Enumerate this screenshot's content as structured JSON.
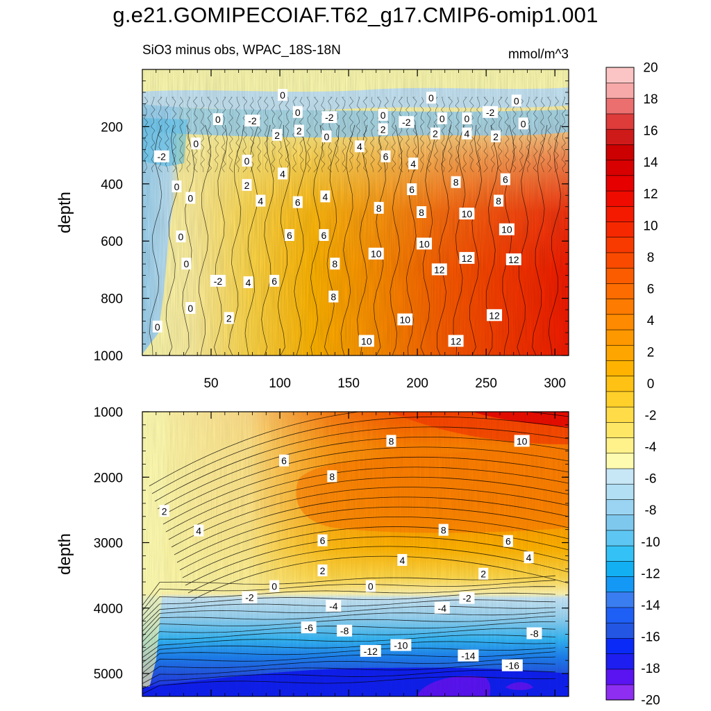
{
  "figure": {
    "title": "g.e21.GOMIPECOIAF.T62_g17.CMIP6-omip1.001",
    "subtitle_left": "SiO3 minus obs, WPAC_18S-18N",
    "subtitle_right": "mmol/m^3",
    "colors": {
      "deep_blue": "#1e1ef0",
      "mid_blue": "#34b6f5",
      "pale_blue": "#c7e6f6",
      "pale_yellow": "#fdfbb0",
      "orange": "#fd8e00",
      "red": "#f31a00"
    }
  },
  "chart_data": [
    {
      "type": "contour",
      "panel": "upper",
      "xlabel": "",
      "ylabel": "depth",
      "xlim": [
        0,
        310
      ],
      "ylim": [
        1000,
        0
      ],
      "xticks": [
        "50",
        "100",
        "150",
        "200",
        "250",
        "300"
      ],
      "yticks": [
        "200",
        "400",
        "600",
        "800",
        "1000"
      ],
      "contour_interval": 1,
      "contour_labels": [
        {
          "text": "0",
          "x": 102,
          "y": 90
        },
        {
          "text": "0",
          "x": 210,
          "y": 100
        },
        {
          "text": "0",
          "x": 272,
          "y": 110
        },
        {
          "text": "0",
          "x": 55,
          "y": 175
        },
        {
          "text": "-2",
          "x": 80,
          "y": 180
        },
        {
          "text": "0",
          "x": 113,
          "y": 150
        },
        {
          "text": "-2",
          "x": 136,
          "y": 168
        },
        {
          "text": "0",
          "x": 175,
          "y": 160
        },
        {
          "text": "-2",
          "x": 192,
          "y": 185
        },
        {
          "text": "0",
          "x": 218,
          "y": 172
        },
        {
          "text": "0",
          "x": 236,
          "y": 172
        },
        {
          "text": "-2",
          "x": 253,
          "y": 150
        },
        {
          "text": "0",
          "x": 277,
          "y": 190
        },
        {
          "text": "2",
          "x": 175,
          "y": 210
        },
        {
          "text": "4",
          "x": 158,
          "y": 270
        },
        {
          "text": "2",
          "x": 98,
          "y": 230
        },
        {
          "text": "2",
          "x": 114,
          "y": 215
        },
        {
          "text": "0",
          "x": 134,
          "y": 235
        },
        {
          "text": "2",
          "x": 213,
          "y": 225
        },
        {
          "text": "4",
          "x": 236,
          "y": 225
        },
        {
          "text": "2",
          "x": 257,
          "y": 235
        },
        {
          "text": "-2",
          "x": 14,
          "y": 305
        },
        {
          "text": "0",
          "x": 39,
          "y": 260
        },
        {
          "text": "0",
          "x": 76,
          "y": 320
        },
        {
          "text": "6",
          "x": 177,
          "y": 305
        },
        {
          "text": "4",
          "x": 197,
          "y": 330
        },
        {
          "text": "6",
          "x": 264,
          "y": 385
        },
        {
          "text": "0",
          "x": 25,
          "y": 410
        },
        {
          "text": "2",
          "x": 76,
          "y": 405
        },
        {
          "text": "4",
          "x": 102,
          "y": 365
        },
        {
          "text": "8",
          "x": 228,
          "y": 395
        },
        {
          "text": "6",
          "x": 196,
          "y": 420
        },
        {
          "text": "0",
          "x": 35,
          "y": 450
        },
        {
          "text": "4",
          "x": 86,
          "y": 460
        },
        {
          "text": "6",
          "x": 113,
          "y": 465
        },
        {
          "text": "4",
          "x": 133,
          "y": 445
        },
        {
          "text": "8",
          "x": 172,
          "y": 485
        },
        {
          "text": "8",
          "x": 203,
          "y": 500
        },
        {
          "text": "10",
          "x": 236,
          "y": 505
        },
        {
          "text": "8",
          "x": 259,
          "y": 460
        },
        {
          "text": "0",
          "x": 28,
          "y": 585
        },
        {
          "text": "6",
          "x": 107,
          "y": 580
        },
        {
          "text": "6",
          "x": 132,
          "y": 580
        },
        {
          "text": "10",
          "x": 265,
          "y": 560
        },
        {
          "text": "10",
          "x": 205,
          "y": 610
        },
        {
          "text": "10",
          "x": 170,
          "y": 645
        },
        {
          "text": "0",
          "x": 32,
          "y": 680
        },
        {
          "text": "8",
          "x": 140,
          "y": 680
        },
        {
          "text": "12",
          "x": 236,
          "y": 660
        },
        {
          "text": "12",
          "x": 270,
          "y": 665
        },
        {
          "text": "12",
          "x": 216,
          "y": 700
        },
        {
          "text": "-2",
          "x": 55,
          "y": 740
        },
        {
          "text": "4",
          "x": 77,
          "y": 745
        },
        {
          "text": "6",
          "x": 96,
          "y": 740
        },
        {
          "text": "8",
          "x": 139,
          "y": 795
        },
        {
          "text": "0",
          "x": 35,
          "y": 835
        },
        {
          "text": "2",
          "x": 63,
          "y": 870
        },
        {
          "text": "12",
          "x": 256,
          "y": 860
        },
        {
          "text": "10",
          "x": 191,
          "y": 875
        },
        {
          "text": "0",
          "x": 11,
          "y": 900
        },
        {
          "text": "10",
          "x": 163,
          "y": 950
        },
        {
          "text": "12",
          "x": 228,
          "y": 950
        }
      ]
    },
    {
      "type": "contour",
      "panel": "lower",
      "xlabel": "",
      "ylabel": "depth",
      "xlim": [
        0,
        310
      ],
      "ylim": [
        5350,
        1000
      ],
      "yticks": [
        "1000",
        "2000",
        "3000",
        "4000",
        "5000"
      ],
      "contour_interval": 1,
      "contour_labels": [
        {
          "text": "8",
          "x": 181,
          "y": 1450
        },
        {
          "text": "10",
          "x": 276,
          "y": 1450
        },
        {
          "text": "6",
          "x": 103,
          "y": 1750
        },
        {
          "text": "8",
          "x": 138,
          "y": 1990
        },
        {
          "text": "2",
          "x": 16,
          "y": 2520
        },
        {
          "text": "4",
          "x": 41,
          "y": 2820
        },
        {
          "text": "8",
          "x": 219,
          "y": 2810
        },
        {
          "text": "6",
          "x": 131,
          "y": 2970
        },
        {
          "text": "6",
          "x": 266,
          "y": 2980
        },
        {
          "text": "4",
          "x": 189,
          "y": 3270
        },
        {
          "text": "4",
          "x": 281,
          "y": 3230
        },
        {
          "text": "2",
          "x": 131,
          "y": 3430
        },
        {
          "text": "2",
          "x": 248,
          "y": 3480
        },
        {
          "text": "0",
          "x": 96,
          "y": 3670
        },
        {
          "text": "0",
          "x": 166,
          "y": 3670
        },
        {
          "text": "-2",
          "x": 78,
          "y": 3840
        },
        {
          "text": "-2",
          "x": 236,
          "y": 3850
        },
        {
          "text": "-4",
          "x": 139,
          "y": 3970
        },
        {
          "text": "-4",
          "x": 218,
          "y": 4000
        },
        {
          "text": "-6",
          "x": 121,
          "y": 4300
        },
        {
          "text": "-8",
          "x": 147,
          "y": 4350
        },
        {
          "text": "-8",
          "x": 285,
          "y": 4390
        },
        {
          "text": "-10",
          "x": 188,
          "y": 4570
        },
        {
          "text": "-12",
          "x": 166,
          "y": 4660
        },
        {
          "text": "-14",
          "x": 237,
          "y": 4730
        },
        {
          "text": "-16",
          "x": 269,
          "y": 4880
        }
      ]
    },
    {
      "type": "colorbar",
      "levels": [
        -20,
        -18,
        -16,
        -14,
        -12,
        -10,
        -8,
        -6,
        -4,
        -2,
        0,
        2,
        4,
        6,
        8,
        10,
        12,
        14,
        16,
        18,
        20
      ],
      "tick_labels": [
        "20",
        "18",
        "16",
        "14",
        "12",
        "10",
        "8",
        "6",
        "4",
        "2",
        "0",
        "-2",
        "-4",
        "-6",
        "-8",
        "-10",
        "-12",
        "-14",
        "-16",
        "-18",
        "-20"
      ],
      "colors_low_to_high": [
        "#8e2ef1",
        "#5a14f2",
        "#1e1ef0",
        "#0a2af8",
        "#2356e3",
        "#1e60f5",
        "#3a7df0",
        "#1498f5",
        "#12b0f2",
        "#34c2f6",
        "#5ec6f2",
        "#7ec8ee",
        "#9bd4f2",
        "#b2dff4",
        "#c7e6f6",
        "#fdfbb0",
        "#fff28a",
        "#ffe766",
        "#ffdc48",
        "#ffd02a",
        "#ffc214",
        "#ffb300",
        "#fea500",
        "#fe9800",
        "#fd8a00",
        "#fd7b00",
        "#fc6c00",
        "#fb5c00",
        "#fa4a00",
        "#f83a00",
        "#f52800",
        "#f31a00",
        "#ef0b00",
        "#e60000",
        "#d80000",
        "#cc0000",
        "#cf1a1a",
        "#de3b3b",
        "#ec6f6f",
        "#f7a8a8",
        "#fbc5c5"
      ]
    }
  ]
}
